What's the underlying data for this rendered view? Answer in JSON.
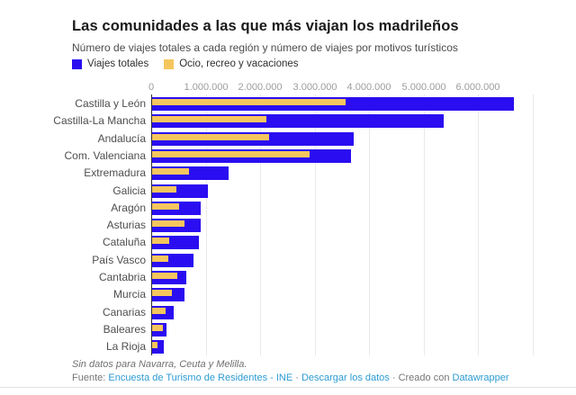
{
  "header": {
    "title": "Las comunidades a las que más viajan los madrileños",
    "subtitle": "Número de viajes totales a cada región y número de viajes por motivos turísticos"
  },
  "legend": [
    {
      "label": "Viajes totales"
    },
    {
      "label": "Ocio, recreo y vacaciones"
    }
  ],
  "colors": {
    "viajes_totales": "#2a0df0",
    "ocio": "#f5c65e",
    "link": "#2d9bd3"
  },
  "chart_data": {
    "type": "bar",
    "orientation": "horizontal",
    "title": "Las comunidades a las que más viajan los madrileños",
    "subtitle": "Número de viajes totales a cada región y número de viajes por motivos turísticos",
    "xlabel": "",
    "ylabel": "",
    "xlim": [
      0,
      7470000
    ],
    "grid": true,
    "legend_position": "top",
    "categories": [
      "Castilla y León",
      "Castilla-La Mancha",
      "Andalucía",
      "Com. Valenciana",
      "Extremadura",
      "Galicia",
      "Aragón",
      "Asturias",
      "Cataluña",
      "País Vasco",
      "Cantabria",
      "Murcia",
      "Canarias",
      "Baleares",
      "La Rioja"
    ],
    "series": [
      {
        "name": "Viajes totales",
        "values": [
          6650000,
          5350000,
          3700000,
          3650000,
          1400000,
          1030000,
          890000,
          900000,
          860000,
          760000,
          620000,
          590000,
          400000,
          270000,
          210000
        ]
      },
      {
        "name": "Ocio, recreo y vacaciones",
        "values": [
          3550000,
          2100000,
          2150000,
          2900000,
          680000,
          440000,
          500000,
          590000,
          320000,
          290000,
          460000,
          370000,
          250000,
          200000,
          100000
        ]
      }
    ],
    "axis_ticks": [
      0,
      1000000,
      2000000,
      3000000,
      4000000,
      5000000,
      6000000
    ],
    "axis_tick_labels": [
      "0",
      "1.000.000",
      "2.000.000",
      "3.000.000",
      "4.000.000",
      "5.000.000",
      "6.000.000"
    ]
  },
  "footer": {
    "note": "Sin datos para Navarra, Ceuta y Melilla.",
    "source_prefix": "Fuente: ",
    "source_link": "Encuesta de Turismo de Residentes - INE",
    "sep1": " · ",
    "download_link": "Descargar los datos",
    "created_prefix": " · Creado con ",
    "created_link": "Datawrapper"
  }
}
